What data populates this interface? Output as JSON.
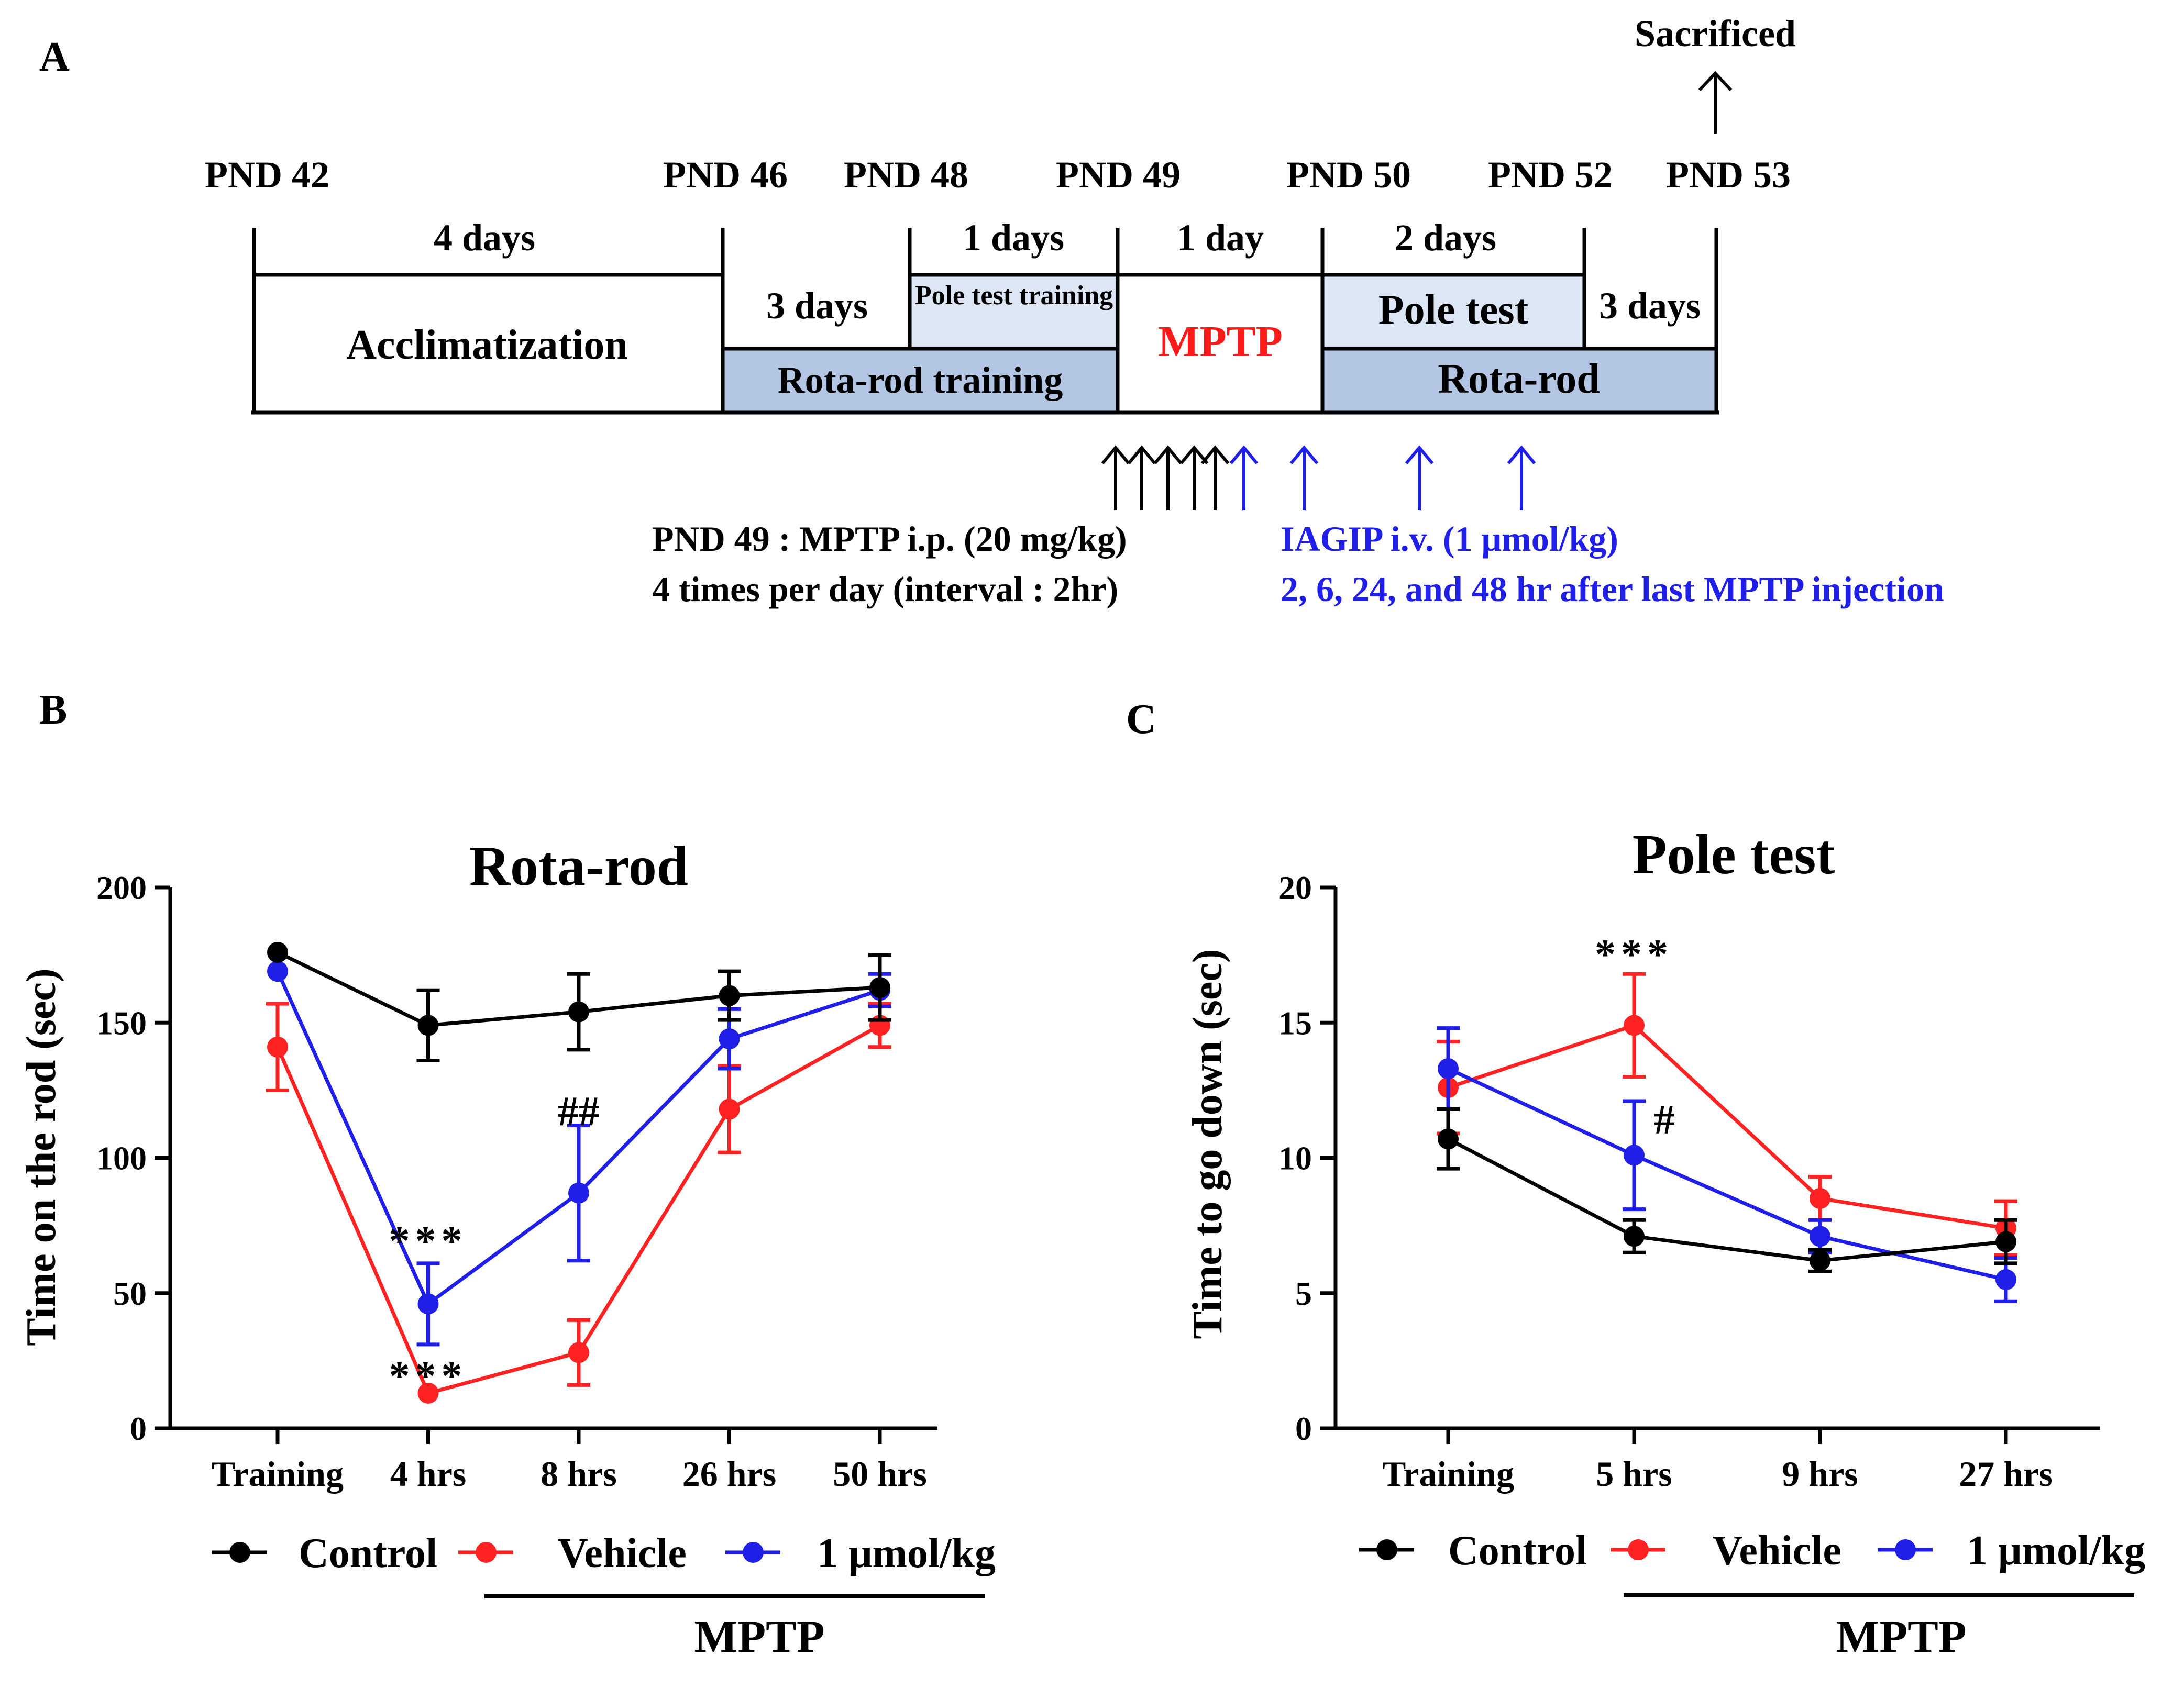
{
  "panels": {
    "a": "A",
    "b": "B",
    "c": "C"
  },
  "colors": {
    "black": "#000000",
    "red": "#ff2222",
    "blue": "#1f1fe8",
    "box_light": "#dde6f4",
    "box_mid": "#b3c6e3",
    "text_blue": "#1f1fe8",
    "text_red": "#ff1a1a"
  },
  "timeline": {
    "sacrificed": "Sacrificed",
    "pnd_labels": [
      "PND 42",
      "PND 46",
      "PND 48",
      "PND 49",
      "PND 50",
      "PND 52",
      "PND 53"
    ],
    "durations": {
      "acclim": "4 days",
      "rota_training": "3 days",
      "pole_training": "1 days",
      "mptp": "1 day",
      "pole": "2 days",
      "rota": "3 days"
    },
    "boxes": {
      "acclim": "Acclimatization",
      "pole_training": "Pole test training",
      "rota_training": "Rota-rod training",
      "mptp": "MPTP",
      "pole": "Pole test",
      "rota": "Rota-rod"
    },
    "notes": {
      "mptp_line1": "PND 49 : MPTP i.p. (20 mg/kg)",
      "mptp_line2": "4 times per day (interval : 2hr)",
      "iagip_line1": "IAGIP i.v. (1 μmol/kg)",
      "iagip_line2": "2, 6, 24, and 48 hr after last MPTP injection"
    }
  },
  "legend": {
    "control": "Control",
    "vehicle": "Vehicle",
    "dose": "1 μmol/kg",
    "mptp": "MPTP"
  },
  "chart_data": [
    {
      "type": "line",
      "title": "Rota-rod",
      "xlabel": "",
      "ylabel": "Time on the rod  (sec)",
      "ylim": [
        0,
        200
      ],
      "yticks": [
        0,
        50,
        100,
        150,
        200
      ],
      "categories": [
        "Training",
        "4 hrs",
        "8 hrs",
        "26 hrs",
        "50 hrs"
      ],
      "series": [
        {
          "name": "Control",
          "values": [
            176,
            149,
            154,
            160,
            163
          ],
          "errors": [
            0,
            13,
            14,
            9,
            12
          ]
        },
        {
          "name": "Vehicle",
          "values": [
            141,
            13,
            28,
            118,
            149
          ],
          "errors": [
            16,
            0,
            12,
            16,
            8
          ]
        },
        {
          "name": "1 μmol/kg",
          "values": [
            169,
            46,
            87,
            144,
            162
          ],
          "errors": [
            0,
            15,
            25,
            11,
            6
          ]
        }
      ],
      "annotations": [
        {
          "text": "***",
          "category": "4 hrs",
          "y": 68
        },
        {
          "text": "***",
          "category": "4 hrs",
          "y": 18
        },
        {
          "text": "##",
          "category": "8 hrs",
          "y": 116
        }
      ]
    },
    {
      "type": "line",
      "title": "Pole test",
      "xlabel": "",
      "ylabel": "Time to go down  (sec)",
      "ylim": [
        0,
        20
      ],
      "yticks": [
        0,
        5,
        10,
        15,
        20
      ],
      "categories": [
        "Training",
        "5 hrs",
        "9 hrs",
        "27 hrs"
      ],
      "series": [
        {
          "name": "Control",
          "values": [
            10.7,
            7.1,
            6.2,
            6.9
          ],
          "errors": [
            1.1,
            0.6,
            0.4,
            0.8
          ]
        },
        {
          "name": "Vehicle",
          "values": [
            12.6,
            14.9,
            8.5,
            7.4
          ],
          "errors": [
            1.7,
            1.9,
            0.8,
            1.0
          ]
        },
        {
          "name": "1 μmol/kg",
          "values": [
            13.3,
            10.1,
            7.1,
            5.5
          ],
          "errors": [
            1.5,
            2.0,
            0.6,
            0.8
          ]
        }
      ],
      "annotations": [
        {
          "text": "***",
          "category": "5 hrs",
          "y": 17.4
        },
        {
          "text": "#",
          "category": "5 hrs",
          "y": 11.3
        }
      ]
    }
  ]
}
